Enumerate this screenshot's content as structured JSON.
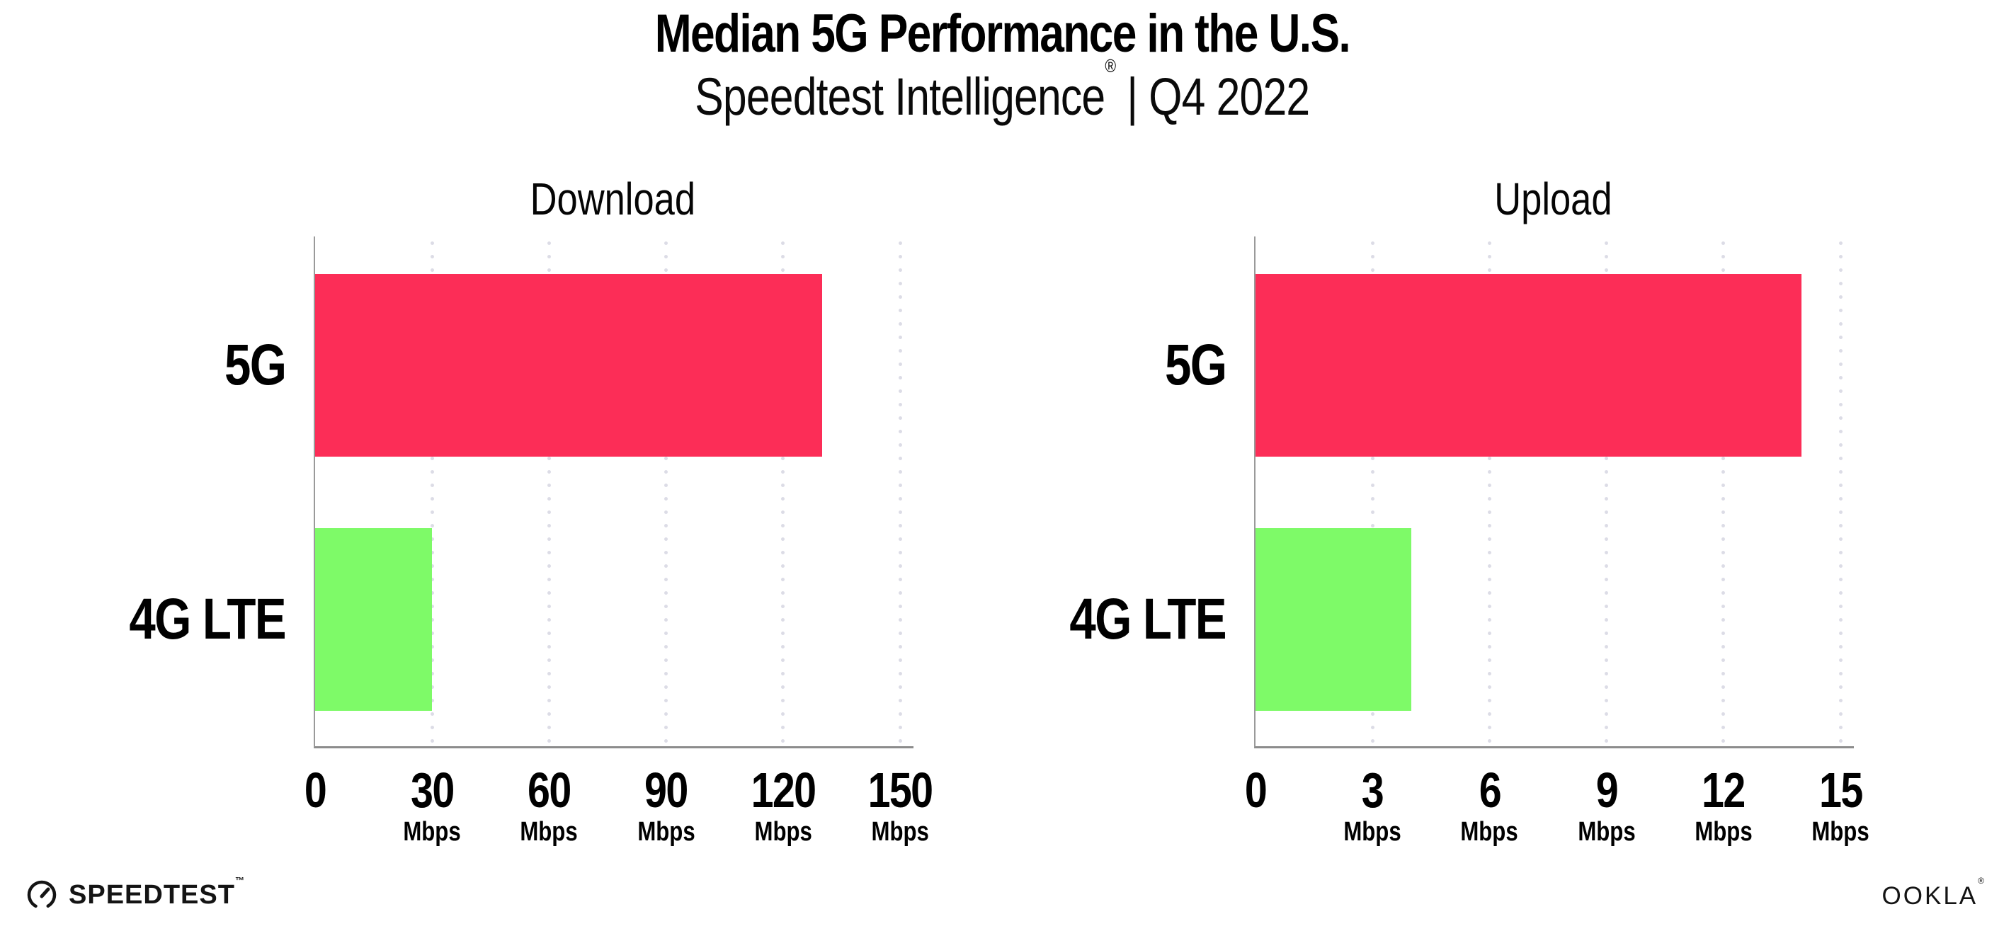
{
  "header": {
    "title": "Median 5G Performance in the U.S.",
    "subtitle_brand": "Speedtest Intelligence",
    "subtitle_reg": "®",
    "subtitle_rest": " | Q4 2022"
  },
  "footer": {
    "speedtest_logo_text": "SPEEDTEST",
    "speedtest_mark": "™",
    "ookla_logo_text": "OOKLA",
    "ookla_mark": "®"
  },
  "colors": {
    "bar_5g": "#fc2d57",
    "bar_4g_lte": "#7efa68",
    "axis": "#8c8c8c",
    "gridline": "#dcdce6",
    "text": "#000000"
  },
  "chart_data": [
    {
      "type": "bar",
      "title": "Download",
      "orientation": "horizontal",
      "categories": [
        "5G",
        "4G LTE"
      ],
      "values": [
        130,
        30
      ],
      "unit": "Mbps",
      "xlim": [
        0,
        150
      ],
      "xticks": [
        0,
        30,
        60,
        90,
        120,
        150
      ],
      "tick_unit_label": "Mbps",
      "grid": "dotted-vertical",
      "legend": "none",
      "bar_colors": [
        "#fc2d57",
        "#7efa68"
      ]
    },
    {
      "type": "bar",
      "title": "Upload",
      "orientation": "horizontal",
      "categories": [
        "5G",
        "4G LTE"
      ],
      "values": [
        14,
        4
      ],
      "unit": "Mbps",
      "xlim": [
        0,
        15
      ],
      "xticks": [
        0,
        3,
        6,
        9,
        12,
        15
      ],
      "tick_unit_label": "Mbps",
      "grid": "dotted-vertical",
      "legend": "none",
      "bar_colors": [
        "#fc2d57",
        "#7efa68"
      ]
    }
  ]
}
